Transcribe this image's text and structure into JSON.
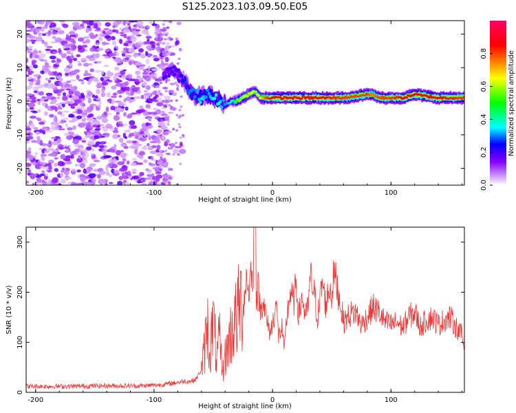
{
  "title": "S125.2023.103.09.50.E05",
  "chart_data": [
    {
      "type": "heatmap",
      "xlabel": "Height of straight line (km)",
      "ylabel": "Frequency (Hz)",
      "xlim": [
        -208,
        162
      ],
      "ylim": [
        -25,
        24
      ],
      "xticks": [
        -200,
        -100,
        0,
        100
      ],
      "yticks": [
        -20,
        -10,
        0,
        10,
        20
      ],
      "colorbar": {
        "label": "Normalized spectral amplitude",
        "range": [
          0.0,
          1.0
        ],
        "ticks": [
          "0.0",
          "0.2",
          "0.4",
          "0.6",
          "0.8"
        ],
        "tick_values": [
          0.0,
          0.2,
          0.4,
          0.6,
          0.8
        ],
        "colors": [
          "#ffffff",
          "#8800ff",
          "#0000ff",
          "#00ffff",
          "#00ff00",
          "#ffff00",
          "#ff0000",
          "#ff0066"
        ]
      },
      "noise_region": {
        "x": [
          -208,
          -88
        ],
        "amplitude": [
          0.0,
          0.2
        ]
      },
      "ridge": {
        "description_points_x": [
          -90,
          -85,
          -80,
          -75,
          -70,
          -65,
          -60,
          -55,
          -50,
          -45,
          -40,
          -35,
          -30,
          -25,
          -20,
          -15,
          -10,
          -5,
          0,
          20,
          40,
          60,
          80,
          85,
          90,
          100,
          110,
          120,
          140,
          162
        ],
        "frequency": [
          8,
          9,
          8,
          6,
          3,
          2,
          1,
          2,
          1,
          0,
          -1,
          0,
          0,
          1,
          2,
          3,
          1,
          1,
          1,
          1,
          1,
          1,
          2,
          2,
          1,
          1,
          1,
          2,
          1,
          1
        ],
        "amplitude": [
          0.2,
          0.2,
          0.2,
          0.25,
          0.3,
          0.3,
          0.35,
          0.3,
          0.35,
          0.35,
          0.3,
          0.35,
          0.55,
          0.6,
          0.7,
          0.6,
          0.65,
          0.8,
          0.85,
          0.9,
          0.85,
          0.8,
          0.8,
          0.75,
          0.8,
          0.8,
          0.85,
          0.85,
          0.85,
          0.8
        ]
      }
    },
    {
      "type": "line",
      "xlabel": "Height of straight line (km)",
      "ylabel": "SNR (10 * v/v)",
      "xlim": [
        -208,
        162
      ],
      "ylim": [
        0,
        330
      ],
      "xticks": [
        -200,
        -100,
        0,
        100
      ],
      "yticks": [
        0,
        100,
        200,
        300
      ],
      "color": "#ee3333",
      "x": [
        -208,
        -190,
        -170,
        -150,
        -130,
        -110,
        -95,
        -85,
        -80,
        -75,
        -70,
        -65,
        -60,
        -57,
        -55,
        -53,
        -50,
        -47,
        -45,
        -42,
        -40,
        -37,
        -35,
        -32,
        -30,
        -27,
        -25,
        -22,
        -20,
        -18,
        -16,
        -15,
        -14,
        -13,
        -12,
        -10,
        -8,
        -5,
        -2,
        0,
        3,
        5,
        8,
        10,
        12,
        15,
        18,
        20,
        22,
        25,
        28,
        30,
        32,
        35,
        38,
        40,
        42,
        45,
        48,
        50,
        52,
        55,
        58,
        60,
        65,
        70,
        75,
        80,
        85,
        90,
        95,
        100,
        105,
        110,
        115,
        120,
        125,
        130,
        135,
        140,
        145,
        150,
        155,
        160,
        162
      ],
      "y": [
        12,
        12,
        12,
        13,
        13,
        13,
        15,
        18,
        20,
        22,
        22,
        25,
        45,
        90,
        140,
        75,
        145,
        60,
        110,
        40,
        70,
        100,
        120,
        140,
        150,
        180,
        165,
        230,
        200,
        250,
        180,
        330,
        200,
        185,
        210,
        160,
        190,
        140,
        120,
        135,
        180,
        110,
        130,
        80,
        150,
        200,
        180,
        220,
        150,
        190,
        150,
        170,
        230,
        200,
        150,
        180,
        220,
        175,
        210,
        195,
        240,
        205,
        170,
        140,
        155,
        160,
        135,
        150,
        170,
        160,
        140,
        135,
        140,
        130,
        150,
        160,
        130,
        145,
        150,
        135,
        145,
        150,
        130,
        115,
        85
      ]
    }
  ]
}
